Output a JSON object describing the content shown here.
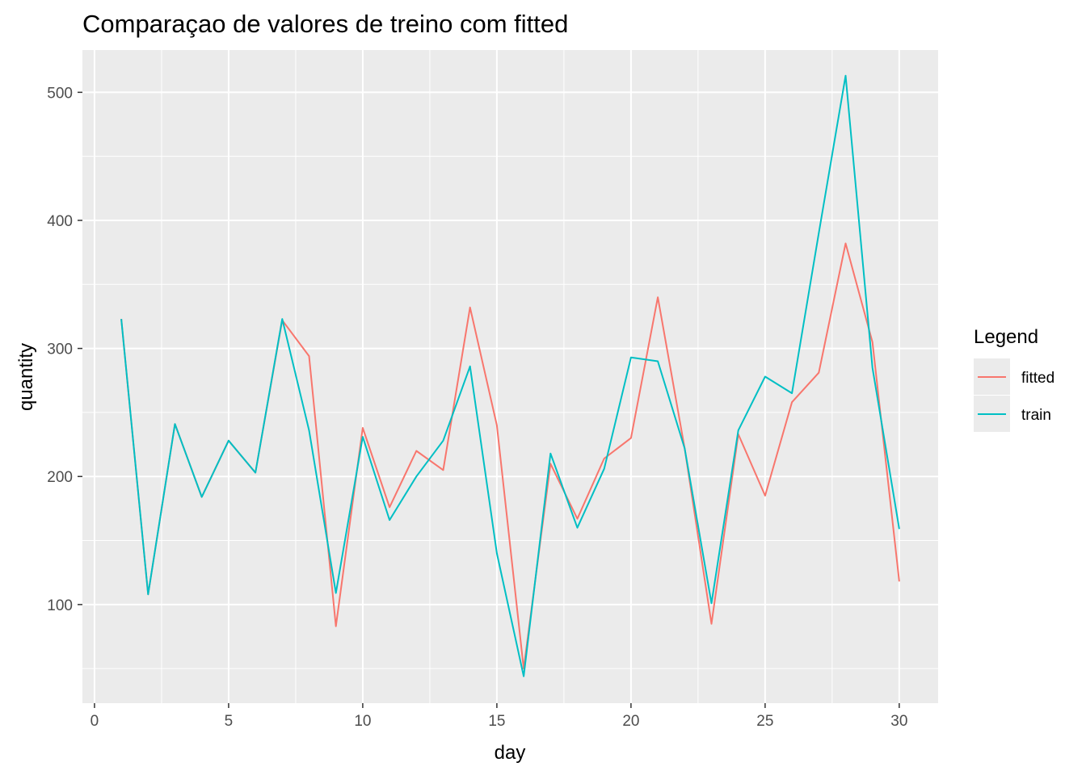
{
  "chart_data": {
    "type": "line",
    "title": "Comparaçao de valores de treino com fitted",
    "xlabel": "day",
    "ylabel": "quantity",
    "xlim": [
      0,
      30
    ],
    "ylim": [
      23,
      533
    ],
    "x_ticks": [
      0,
      5,
      10,
      15,
      20,
      25,
      30
    ],
    "y_ticks": [
      100,
      200,
      300,
      400,
      500
    ],
    "x_tick_labels": [
      "0",
      "5",
      "10",
      "15",
      "20",
      "25",
      "30"
    ],
    "y_tick_labels": [
      "100",
      "200",
      "300",
      "400",
      "500"
    ],
    "grid": true,
    "legend": {
      "title": "Legend",
      "position": "right"
    },
    "x": [
      1,
      2,
      3,
      4,
      5,
      6,
      7,
      8,
      9,
      10,
      11,
      12,
      13,
      14,
      15,
      16,
      17,
      18,
      19,
      20,
      21,
      22,
      23,
      24,
      25,
      26,
      27,
      28,
      29,
      30
    ],
    "series": [
      {
        "name": "fitted",
        "color": "#F8766D",
        "values": [
          323,
          108,
          241,
          184,
          228,
          203,
          322,
          294,
          83,
          238,
          176,
          220,
          205,
          332,
          240,
          50,
          210,
          167,
          214,
          230,
          340,
          222,
          85,
          233,
          185,
          258,
          281,
          382,
          305,
          118
        ]
      },
      {
        "name": "train",
        "color": "#00BFC4",
        "values": [
          323,
          108,
          241,
          184,
          228,
          203,
          323,
          236,
          109,
          231,
          166,
          200,
          228,
          286,
          140,
          44,
          218,
          160,
          206,
          293,
          290,
          222,
          101,
          236,
          278,
          265,
          390,
          513,
          285,
          159
        ]
      }
    ]
  }
}
